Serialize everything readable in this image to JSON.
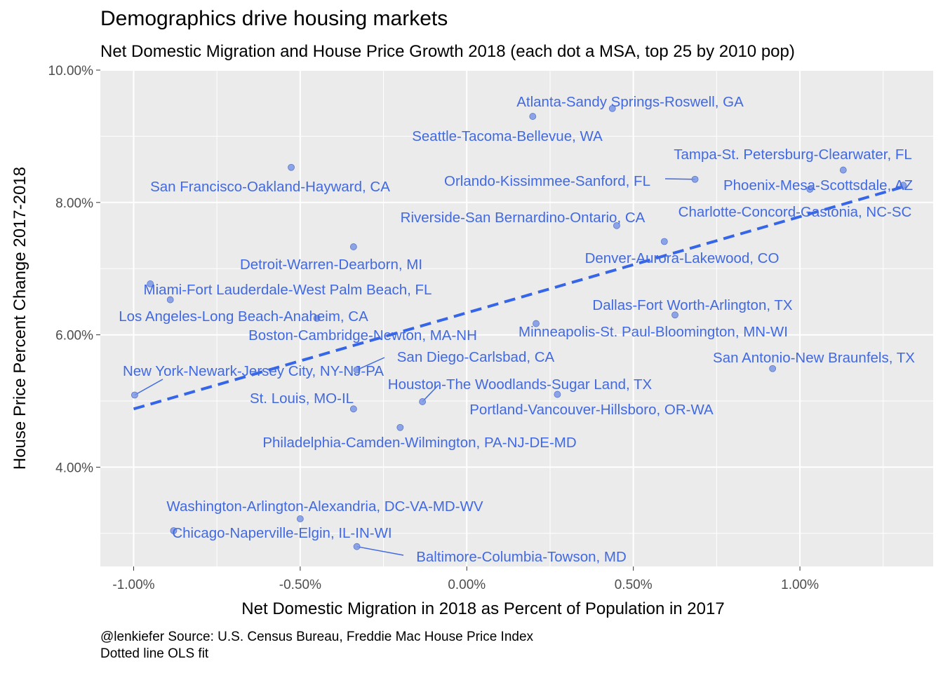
{
  "chart_data": {
    "type": "scatter",
    "title": "Demographics drive housing markets",
    "subtitle": "Net Domestic Migration and House Price Growth 2018 (each dot a MSA, top 25 by 2010 pop)",
    "xlabel": "Net Domestic Migration in 2018 as Percent of Population in 2017",
    "ylabel": "House Price Percent Change 2017-2018",
    "caption": [
      "@lenkiefer Source: U.S. Census Bureau, Freddie Mac House Price Index",
      "Dotted line OLS fit"
    ],
    "xlim": [
      -1.1,
      1.4
    ],
    "ylim": [
      2.5,
      10.0
    ],
    "x_ticks": [
      -1.0,
      -0.5,
      0.0,
      0.5,
      1.0
    ],
    "x_tick_labels": [
      "-1.00%",
      "-0.50%",
      "0.00%",
      "0.50%",
      "1.00%"
    ],
    "y_ticks": [
      4.0,
      6.0,
      8.0,
      10.0
    ],
    "y_tick_labels": [
      "4.00%",
      "6.00%",
      "8.00%",
      "10.00%"
    ],
    "grid": true,
    "colors": {
      "point": "#7b97e6",
      "label": "#4169e1",
      "fit": "#3565e8",
      "panel": "#ebebeb",
      "grid": "#ffffff",
      "axis_text": "#4d4d4d"
    },
    "fit_line": {
      "style": "dashed",
      "x": [
        -1.0,
        1.32
      ],
      "y": [
        4.88,
        8.25
      ]
    },
    "points": [
      {
        "name": "Atlanta-Sandy Springs-Roswell, GA",
        "x": 0.437,
        "y": 9.42
      },
      {
        "name": "Seattle-Tacoma-Bellevue, WA",
        "x": 0.198,
        "y": 9.3
      },
      {
        "name": "Tampa-St. Petersburg-Clearwater, FL",
        "x": 1.13,
        "y": 8.49
      },
      {
        "name": "San Francisco-Oakland-Hayward, CA",
        "x": -0.527,
        "y": 8.53
      },
      {
        "name": "Orlando-Kissimmee-Sanford, FL",
        "x": 0.685,
        "y": 8.35
      },
      {
        "name": "Phoenix-Mesa-Scottsdale, AZ",
        "x": 1.03,
        "y": 8.2
      },
      {
        "name": "Charlotte-Concord-Gastonia, NC-SC",
        "x": 1.31,
        "y": 8.26
      },
      {
        "name": "Riverside-San Bernardino-Ontario, CA",
        "x": 0.45,
        "y": 7.65
      },
      {
        "name": "Detroit-Warren-Dearborn, MI",
        "x": -0.34,
        "y": 7.33
      },
      {
        "name": "Denver-Aurora-Lakewood, CO",
        "x": 0.593,
        "y": 7.41
      },
      {
        "name": "Miami-Fort Lauderdale-West Palm Beach, FL",
        "x": -0.95,
        "y": 6.77
      },
      {
        "name": "Los Angeles-Long Beach-Anaheim, CA",
        "x": -0.89,
        "y": 6.53
      },
      {
        "name": "Dallas-Fort Worth-Arlington, TX",
        "x": 0.625,
        "y": 6.3
      },
      {
        "name": "Boston-Cambridge-Newton, MA-NH",
        "x": -0.45,
        "y": 6.25
      },
      {
        "name": "Minneapolis-St. Paul-Bloomington, MN-WI",
        "x": 0.208,
        "y": 6.17
      },
      {
        "name": "San Antonio-New Braunfels, TX",
        "x": 0.918,
        "y": 5.49
      },
      {
        "name": "San Diego-Carlsbad, CA",
        "x": -0.33,
        "y": 5.47
      },
      {
        "name": "New York-Newark-Jersey City, NY-NJ-PA",
        "x": -0.997,
        "y": 5.09
      },
      {
        "name": "Houston-The Woodlands-Sugar Land, TX",
        "x": -0.133,
        "y": 4.99
      },
      {
        "name": "Portland-Vancouver-Hillsboro, OR-WA",
        "x": 0.272,
        "y": 5.1
      },
      {
        "name": "St. Louis, MO-IL",
        "x": -0.34,
        "y": 4.88
      },
      {
        "name": "Philadelphia-Camden-Wilmington, PA-NJ-DE-MD",
        "x": -0.2,
        "y": 4.6
      },
      {
        "name": "Washington-Arlington-Alexandria, DC-VA-MD-WV",
        "x": -0.5,
        "y": 3.22
      },
      {
        "name": "Chicago-Naperville-Elgin, IL-IN-WI",
        "x": -0.88,
        "y": 3.04
      },
      {
        "name": "Baltimore-Columbia-Towson, MD",
        "x": -0.33,
        "y": 2.8
      }
    ]
  }
}
